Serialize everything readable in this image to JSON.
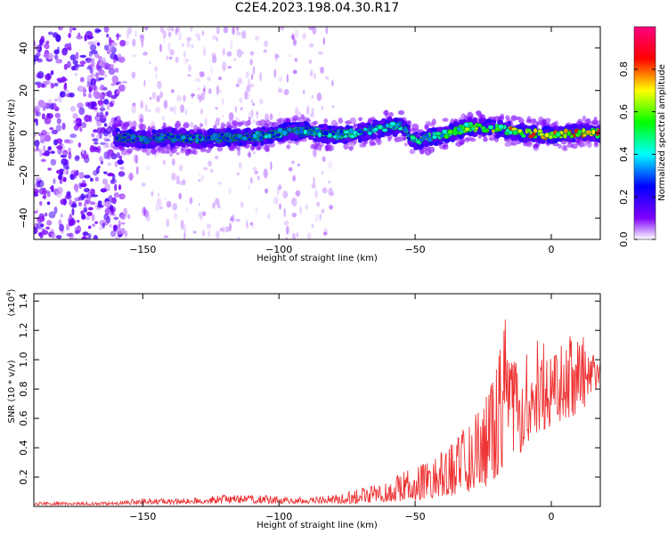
{
  "title": "C2E4.2023.198.04.30.R17",
  "chart_data": [
    {
      "type": "heatmap",
      "xlabel": "Height of straight line (km)",
      "ylabel": "Frequency (Hz)",
      "xlim": [
        -190,
        18
      ],
      "ylim": [
        -50,
        50
      ],
      "xticks": [
        -150,
        -100,
        -50,
        0
      ],
      "yticks": [
        -40,
        -20,
        0,
        20,
        40
      ],
      "colorbar": {
        "label": "Normalized spectral amplitude",
        "range": [
          0,
          1
        ],
        "ticks": [
          0.0,
          0.2,
          0.4,
          0.6,
          0.8
        ],
        "colormap": [
          "#ffffff",
          "#7f00ff",
          "#0000ff",
          "#00ffff",
          "#00ff00",
          "#ffff00",
          "#ff0000",
          "#ff0080"
        ]
      },
      "trend": {
        "x": [
          -160,
          -150,
          -140,
          -130,
          -120,
          -110,
          -100,
          -90,
          -80,
          -70,
          -60,
          -55,
          -50,
          -45,
          -40,
          -30,
          -20,
          -10,
          0,
          10,
          18
        ],
        "y": [
          -2,
          -3,
          -2,
          -3,
          -2,
          -2,
          0,
          1,
          -1,
          0,
          3,
          3,
          -4,
          -2,
          -1,
          3,
          2,
          0,
          -1,
          0,
          0
        ],
        "amplitude": [
          0.25,
          0.35,
          0.3,
          0.35,
          0.3,
          0.35,
          0.4,
          0.4,
          0.4,
          0.45,
          0.5,
          0.45,
          0.45,
          0.5,
          0.55,
          0.65,
          0.7,
          0.85,
          0.85,
          0.9,
          0.9
        ]
      },
      "scatter_region": {
        "dense_x": [
          -190,
          -157
        ],
        "light_x": [
          -157,
          -80
        ],
        "amplitude_max": 0.15
      }
    },
    {
      "type": "line",
      "xlabel": "Height of straight line (km)",
      "ylabel": "SNR (10 * v/v)",
      "multiplier": "(x10^4)",
      "xlim": [
        -190,
        18
      ],
      "ylim": [
        0,
        1.45
      ],
      "xticks": [
        -150,
        -100,
        -50,
        0
      ],
      "yticks": [
        0.2,
        0.4,
        0.6,
        0.8,
        1.0,
        1.2,
        1.4
      ],
      "color": "#ee3333",
      "envelope": {
        "x": [
          -190,
          -160,
          -150,
          -140,
          -130,
          -120,
          -110,
          -100,
          -90,
          -80,
          -70,
          -60,
          -50,
          -45,
          -40,
          -35,
          -30,
          -25,
          -20,
          -17,
          -15,
          -12,
          -10,
          -8,
          -5,
          0,
          5,
          10,
          15,
          18
        ],
        "low": [
          0.01,
          0.01,
          0.015,
          0.015,
          0.02,
          0.02,
          0.02,
          0.02,
          0.02,
          0.02,
          0.02,
          0.03,
          0.04,
          0.05,
          0.06,
          0.08,
          0.1,
          0.12,
          0.2,
          0.3,
          0.35,
          0.35,
          0.4,
          0.45,
          0.5,
          0.55,
          0.6,
          0.62,
          0.75,
          0.85
        ],
        "high": [
          0.03,
          0.03,
          0.06,
          0.05,
          0.06,
          0.08,
          0.08,
          0.07,
          0.06,
          0.08,
          0.12,
          0.18,
          0.28,
          0.3,
          0.38,
          0.45,
          0.6,
          0.7,
          0.95,
          1.42,
          1.05,
          1.0,
          1.05,
          1.1,
          1.2,
          1.0,
          1.15,
          1.22,
          1.05,
          0.98
        ]
      }
    }
  ]
}
